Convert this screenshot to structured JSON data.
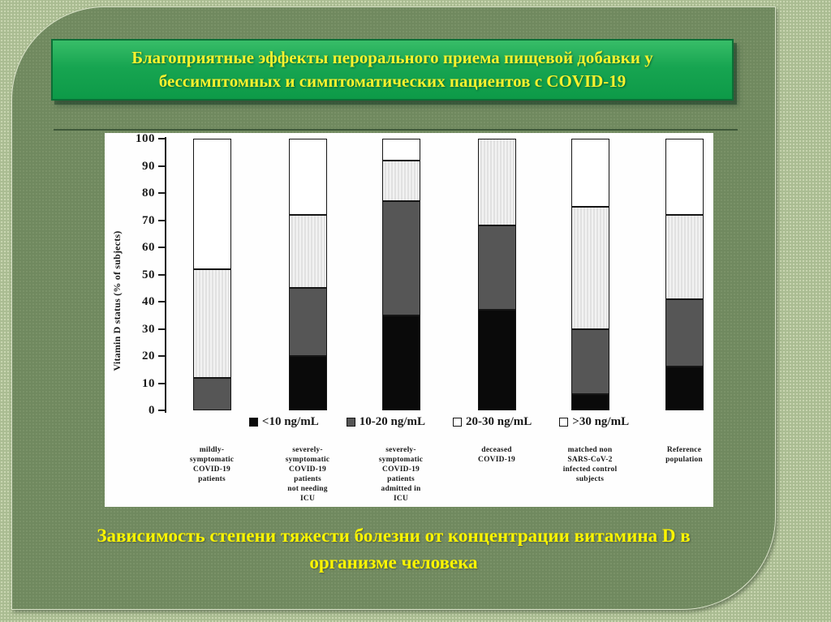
{
  "title": {
    "line1": "Благоприятные эффекты перорального приема пищевой добавки у",
    "line2": "бессимптомных и симптоматических пациентов с COVID-19"
  },
  "caption": {
    "line1": "Зависимость степени тяжести болезни от концентрации витамина D в",
    "line2": "организме человека"
  },
  "colors": {
    "outer_background": "#aabc92",
    "panel_background": "#70895f",
    "banner_green": "#17a551",
    "banner_border": "#0b6f36",
    "title_text": "#f7f22e",
    "caption_text": "#fcf500",
    "bar_black": "#0a0a0a",
    "bar_darkgray": "#565656",
    "bar_lightstripe": "#e9e9e9",
    "bar_white": "#ffffff"
  },
  "chart_data": {
    "type": "bar",
    "stacked": true,
    "title": "",
    "xlabel": "",
    "ylabel": "Vitamin D status (% of subjects)",
    "ylim": [
      0,
      100
    ],
    "yticks": [
      0,
      10,
      20,
      30,
      40,
      50,
      60,
      70,
      80,
      90,
      100
    ],
    "grid": false,
    "legend_position": "bottom",
    "categories": [
      "mildly-\nsymptomatic\nCOVID-19\npatients",
      "severely-\nsymptomatic\nCOVID-19\npatients\nnot needing\nICU",
      "severely-\nsymptomatic\nCOVID-19\npatients\nadmitted in\nICU",
      "deceased\nCOVID-19",
      "matched non\nSARS-CoV-2\ninfected control\nsubjects",
      "Reference\npopulation"
    ],
    "series": [
      {
        "name": "<10 ng/mL",
        "fill": "black",
        "values": [
          0,
          20,
          35,
          37,
          6,
          16
        ]
      },
      {
        "name": "10-20 ng/mL",
        "fill": "darkgray",
        "values": [
          12,
          25,
          42,
          31,
          24,
          25
        ]
      },
      {
        "name": "20-30 ng/mL",
        "fill": "stripes",
        "values": [
          40,
          27,
          15,
          32,
          45,
          31
        ]
      },
      {
        "name": ">30 ng/mL",
        "fill": "white",
        "values": [
          48,
          28,
          8,
          0,
          25,
          28
        ]
      }
    ]
  }
}
